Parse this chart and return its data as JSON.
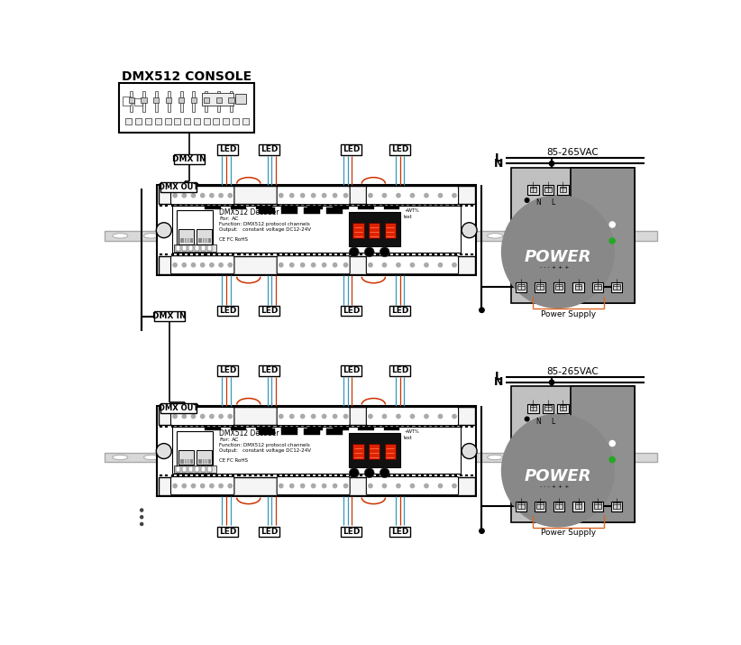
{
  "title": "DMX512 CONSOLE",
  "bg_color": "#ffffff",
  "rail_color_light": "#d8d8d8",
  "rail_color_dark": "#a8a8a8",
  "wire_cyan": "#3399bb",
  "wire_red": "#cc3300",
  "wire_orange": "#dd6622",
  "led_text": "LED",
  "power_text": "POWER",
  "voltage_text": "85-265VAC",
  "power_supply_text": "Power Supply",
  "dmx_in_text": "DMX IN",
  "dmx_out_text": "DMX OUT",
  "decoder_title": "DMX512 Decoder",
  "L_text": "L",
  "N_text": "N",
  "ps_light_gray": "#c0c0c0",
  "ps_dark_gray": "#909090",
  "ps_circle_gray": "#888888",
  "dots_color": "#444444"
}
